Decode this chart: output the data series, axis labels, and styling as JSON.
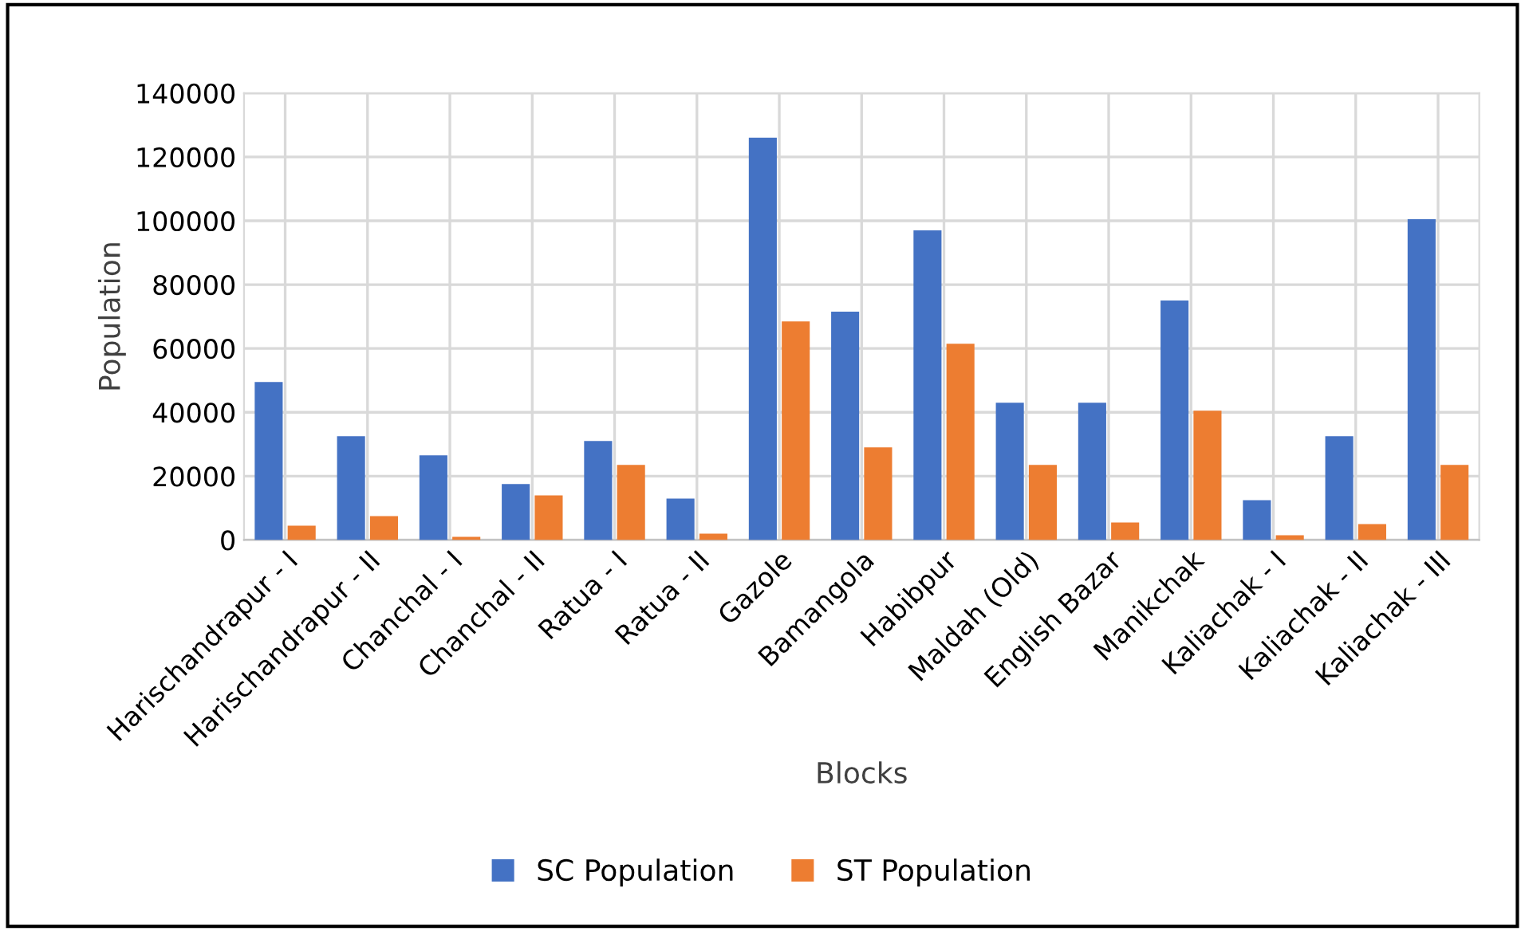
{
  "chart_data": {
    "type": "bar",
    "xlabel": "Blocks",
    "ylabel": "Population",
    "categories": [
      "Harischandrapur - I",
      "Harischandrapur - II",
      "Chanchal - I",
      "Chanchal - II",
      "Ratua - I",
      "Ratua - II",
      "Gazole",
      "Bamangola",
      "Habibpur",
      "Maldah (Old)",
      "English Bazar",
      "Manikchak",
      "Kaliachak - I",
      "Kaliachak - II",
      "Kaliachak - III"
    ],
    "series": [
      {
        "name": "SC Population",
        "color": "#4472c4",
        "values": [
          49500,
          32500,
          26500,
          17500,
          31000,
          13000,
          126000,
          71500,
          97000,
          43000,
          43000,
          75000,
          12500,
          32500,
          100500
        ]
      },
      {
        "name": "ST Population",
        "color": "#ed7d31",
        "values": [
          4500,
          7500,
          1000,
          14000,
          23500,
          2000,
          68500,
          29000,
          61500,
          23500,
          5500,
          40500,
          1500,
          5000,
          23500
        ]
      }
    ],
    "ylim": [
      0,
      140000
    ],
    "yticks": [
      0,
      20000,
      40000,
      60000,
      80000,
      100000,
      120000,
      140000
    ],
    "grid": true,
    "legend": "bottom"
  }
}
